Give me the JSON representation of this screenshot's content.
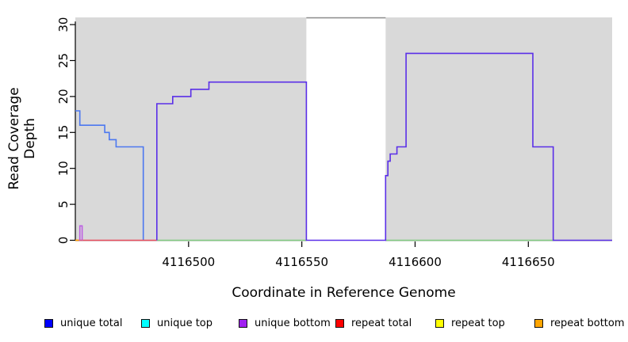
{
  "figure": {
    "xlabel": "Coordinate in Reference Genome",
    "ylabel": "Read Coverage Depth"
  },
  "legend": {
    "items": [
      {
        "label": "unique total",
        "color": "#0000FF"
      },
      {
        "label": "unique top",
        "color": "#00FFFF"
      },
      {
        "label": "unique bottom",
        "color": "#A020F0"
      },
      {
        "label": "repeat total",
        "color": "#FF0000"
      },
      {
        "label": "repeat top",
        "color": "#FFFF00"
      },
      {
        "label": "repeat bottom",
        "color": "#FFA500"
      }
    ]
  },
  "chart_data": {
    "type": "line",
    "title": "",
    "xlabel": "Coordinate in Reference Genome",
    "ylabel": "Read Coverage Depth",
    "xlim": [
      4116450,
      4116687
    ],
    "ylim": [
      0,
      31
    ],
    "x_ticks": [
      4116500,
      4116550,
      4116600,
      4116650
    ],
    "y_ticks": [
      0,
      5,
      10,
      15,
      20,
      25,
      30
    ],
    "grid": false,
    "legend_position": "bottom",
    "panel_bg": "#D9D9D9",
    "uncovered_gap_regions": [
      {
        "x1": 4116552,
        "x2": 4116587,
        "fill": "#FFFFFF",
        "border_top": "#8A8A8A"
      }
    ],
    "series": [
      {
        "name": "unique coverage left block (total/top overlap)",
        "color": "#4C78F0",
        "step_points": [
          [
            4116450,
            18
          ],
          [
            4116452,
            16
          ],
          [
            4116463,
            15
          ],
          [
            4116465,
            14
          ],
          [
            4116468,
            13
          ],
          [
            4116480,
            0
          ]
        ],
        "end_x": 4116480
      },
      {
        "name": "repeat total baseline",
        "color": "#E94F5F",
        "step_points": [
          [
            4116450,
            0
          ]
        ],
        "end_x": 4116486
      },
      {
        "name": "zero baseline mid (top/repeat overlap)",
        "color": "#82CB82",
        "step_points": [
          [
            4116486,
            0
          ]
        ],
        "end_x": 4116552
      },
      {
        "name": "zero baseline right (top/repeat overlap)",
        "color": "#82CB82",
        "step_points": [
          [
            4116587,
            0
          ]
        ],
        "end_x": 4116661
      },
      {
        "name": "repeat bottom corner mark",
        "color": "#FFA500",
        "step_points": [
          [
            4116450,
            0
          ]
        ],
        "end_x": 4116451.5
      },
      {
        "name": "unique bottom edge spike",
        "color": "#BC5FE2",
        "step_points": [
          [
            4116452,
            0
          ],
          [
            4116452,
            2
          ],
          [
            4116453,
            0
          ]
        ],
        "end_x": 4116453
      },
      {
        "name": "unique coverage main block (total/bottom overlap)",
        "color": "#5A2FE8",
        "step_points": [
          [
            4116486,
            0
          ],
          [
            4116486,
            19
          ],
          [
            4116493,
            20
          ],
          [
            4116501,
            21
          ],
          [
            4116509,
            22
          ],
          [
            4116552,
            0
          ],
          [
            4116587,
            9
          ],
          [
            4116588,
            11
          ],
          [
            4116589,
            12
          ],
          [
            4116592,
            13
          ],
          [
            4116596,
            26
          ],
          [
            4116652,
            13
          ],
          [
            4116661,
            0
          ]
        ],
        "end_x": 4116687
      }
    ]
  }
}
